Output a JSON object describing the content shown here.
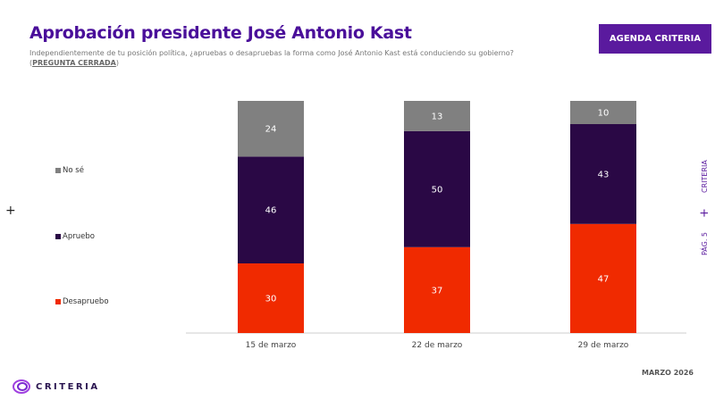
{
  "header": {
    "title": "Aprobación presidente José Antonio Kast",
    "question": "Independientemente de tu posición política, ¿apruebas o desapruebas la forma como José Antonio Kast está conduciendo su gobierno?",
    "question_tag": "PREGUNTA CERRADA",
    "badge": "AGENDA CRITERIA"
  },
  "side": {
    "brand": "CRITERIA",
    "page": "PÁG. 5"
  },
  "footer": {
    "date": "MARZO 2026",
    "logo": "CRITERIA"
  },
  "chart_data": {
    "type": "bar",
    "stacked": true,
    "categories": [
      "15 de marzo",
      "22 de marzo",
      "29 de marzo"
    ],
    "series": [
      {
        "name": "Desapruebo",
        "color": "#f02a00",
        "values": [
          30,
          37,
          47
        ]
      },
      {
        "name": "Apruebo",
        "color": "#2a0845",
        "values": [
          46,
          50,
          43
        ]
      },
      {
        "name": "No sé",
        "color": "#808080",
        "values": [
          24,
          13,
          10
        ]
      }
    ],
    "ylim": [
      0,
      100
    ],
    "grid": false,
    "legend": "left"
  }
}
